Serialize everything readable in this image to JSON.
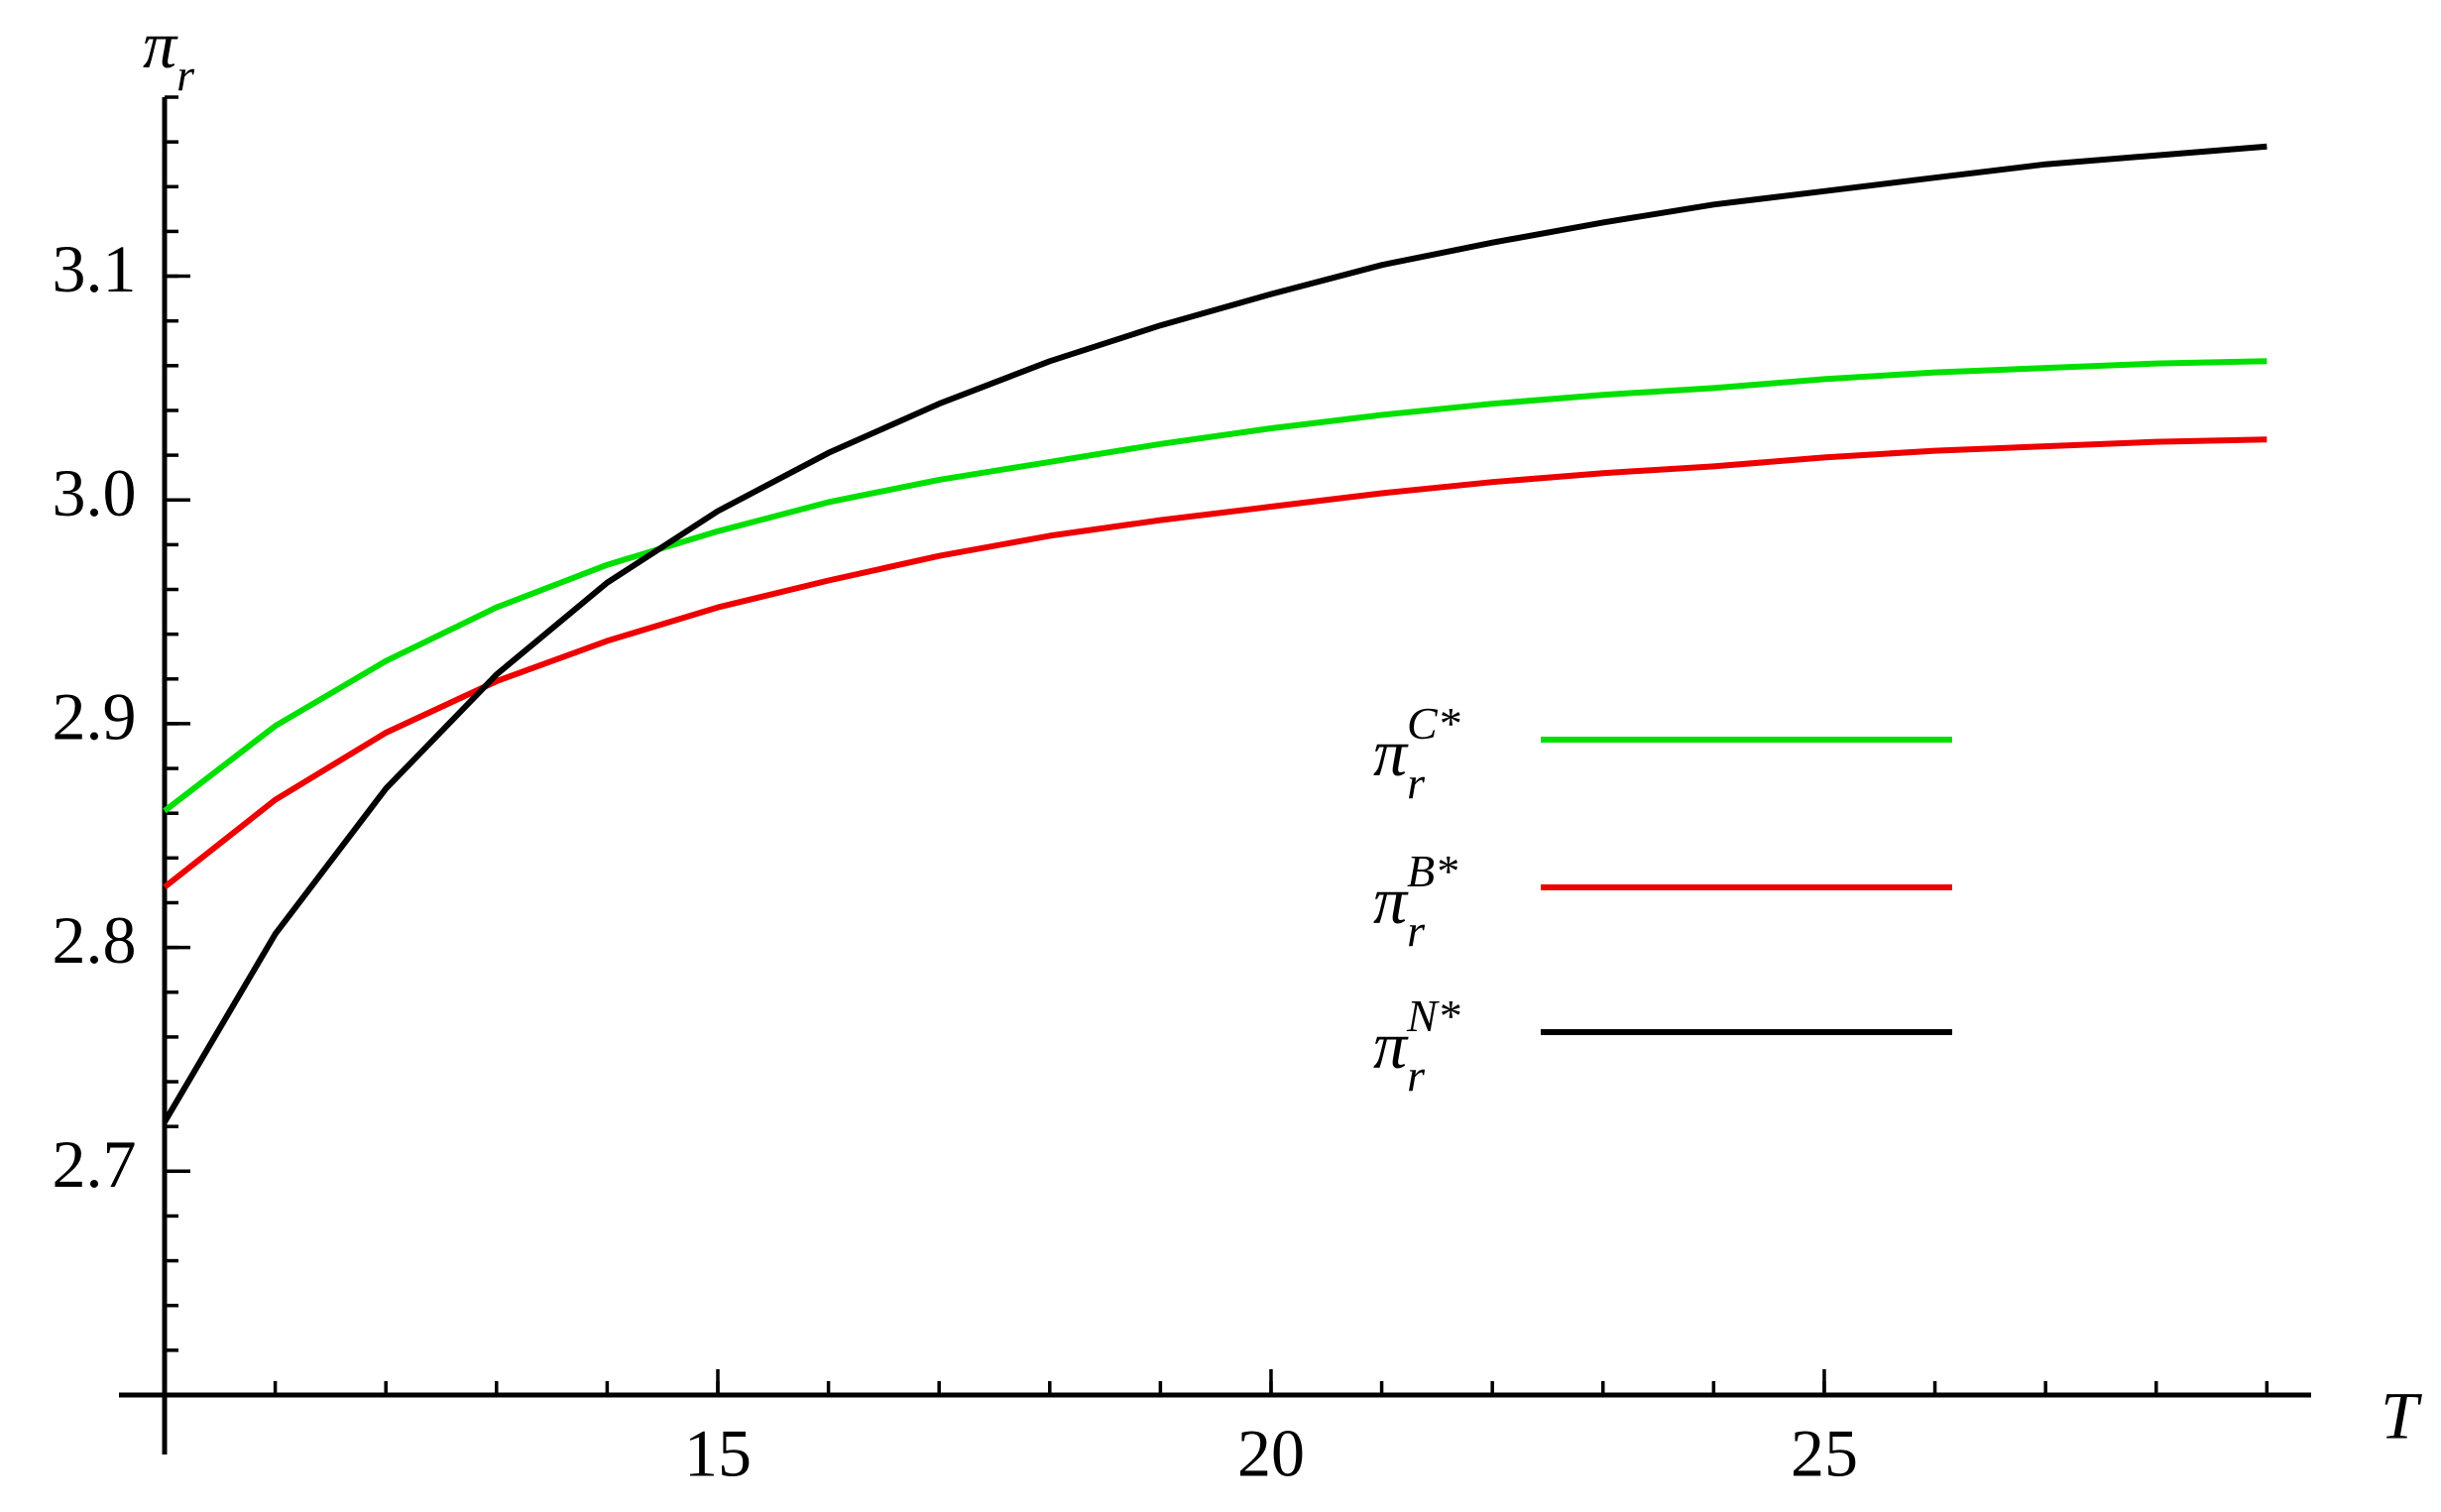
{
  "chart_data": {
    "type": "line",
    "x_label": "T",
    "y_label": "π_r",
    "x": [
      10,
      11,
      12,
      13,
      14,
      15,
      16,
      17,
      18,
      19,
      20,
      21,
      22,
      23,
      24,
      25,
      26,
      27,
      28,
      29
    ],
    "series": [
      {
        "name": "π_r^C*",
        "color": "#00e000",
        "values": [
          2.861,
          2.899,
          2.928,
          2.952,
          2.971,
          2.986,
          2.999,
          3.009,
          3.017,
          3.025,
          3.032,
          3.038,
          3.043,
          3.047,
          3.05,
          3.054,
          3.057,
          3.059,
          3.061,
          3.062
        ]
      },
      {
        "name": "π_r^B*",
        "color": "#ee0000",
        "values": [
          2.827,
          2.866,
          2.896,
          2.919,
          2.937,
          2.952,
          2.964,
          2.975,
          2.984,
          2.991,
          2.997,
          3.003,
          3.008,
          3.012,
          3.015,
          3.019,
          3.022,
          3.024,
          3.026,
          3.027
        ]
      },
      {
        "name": "π_r^N*",
        "color": "#000000",
        "values": [
          2.722,
          2.806,
          2.871,
          2.922,
          2.963,
          2.995,
          3.021,
          3.043,
          3.062,
          3.078,
          3.092,
          3.105,
          3.115,
          3.124,
          3.132,
          3.138,
          3.144,
          3.15,
          3.154,
          3.158
        ]
      }
    ],
    "xlim": [
      10,
      29.4
    ],
    "ylim": [
      2.6,
      3.18
    ],
    "xticks": [
      15,
      20,
      25
    ],
    "yticks": [
      2.7,
      2.8,
      2.9,
      {
        "value": 3,
        "label": "3.0"
      },
      3.1
    ],
    "grid": false,
    "legend": "right"
  }
}
